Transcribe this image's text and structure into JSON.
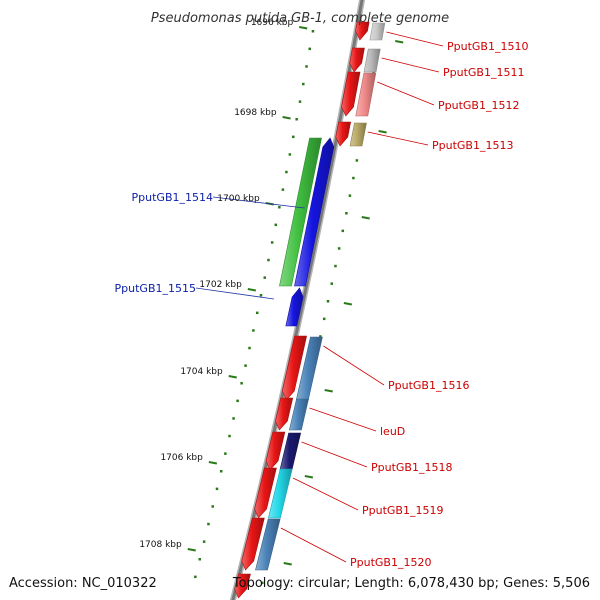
{
  "title": "Pseudomonas putida GB-1, complete genome",
  "footer": {
    "accession": "Accession: NC_010322",
    "summary": "Topology: circular; Length: 6,078,430 bp; Genes: 5,506"
  },
  "colors": {
    "backbone": "#777777",
    "tick": "#2a7a1a",
    "reverse_label": "#0b1fa8",
    "forward_label": "#cc0000",
    "leader_reverse": "#2233aa",
    "leader_forward": "#cc0000"
  },
  "ruler": {
    "labels": [
      {
        "text": "1696 kbp"
      },
      {
        "text": "1698 kbp"
      },
      {
        "text": "1700 kbp"
      },
      {
        "text": "1702 kbp"
      },
      {
        "text": "1704 kbp"
      },
      {
        "text": "1706 kbp"
      },
      {
        "text": "1708 kbp"
      }
    ]
  },
  "genes": [
    {
      "label": "PputGB1_1510",
      "strand": "forward",
      "protein_color": "#e81515",
      "rna_color": "#c9c9c9"
    },
    {
      "label": "PputGB1_1511",
      "strand": "forward",
      "protein_color": "#e81515",
      "rna_color": "#b8b8b8"
    },
    {
      "label": "PputGB1_1512",
      "strand": "forward",
      "protein_color": "#e81515",
      "rna_color": "#f08888"
    },
    {
      "label": "PputGB1_1513",
      "strand": "forward",
      "protein_color": "#e81515",
      "rna_color": "#b8a865"
    },
    {
      "label": "PputGB1_1514",
      "strand": "reverse",
      "protein_color": "#1515e0",
      "rna_color": "#3fbf3f"
    },
    {
      "label": "PputGB1_1515",
      "strand": "reverse",
      "protein_color": "#1515e0",
      "rna_color": ""
    },
    {
      "label": "PputGB1_1516",
      "strand": "forward",
      "protein_color": "#e81515",
      "rna_color": "#4a82b8"
    },
    {
      "label": "leuD",
      "strand": "forward",
      "protein_color": "#e81515",
      "rna_color": "#4a82b8"
    },
    {
      "label": "PputGB1_1518",
      "strand": "forward",
      "protein_color": "#e81515",
      "rna_color": "#1a1a70"
    },
    {
      "label": "PputGB1_1519",
      "strand": "forward",
      "protein_color": "#e81515",
      "rna_color": "#22d8e8"
    },
    {
      "label": "PputGB1_1520",
      "strand": "forward",
      "protein_color": "#e81515",
      "rna_color": "#4a82b8"
    }
  ]
}
